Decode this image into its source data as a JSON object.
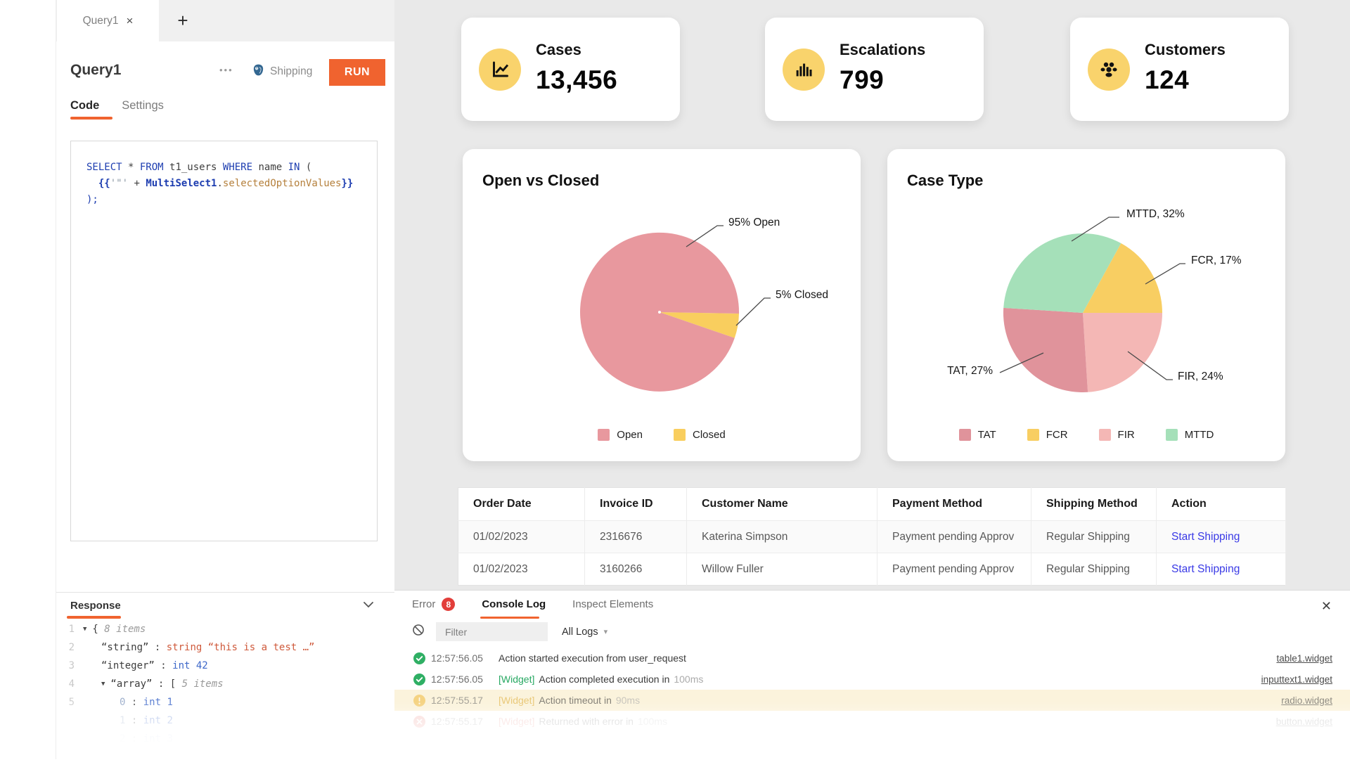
{
  "colors": {
    "accent": "#F0632F",
    "icon_circle": "#F9D36C",
    "link": "#3A3AE6",
    "success": "#2FAF64",
    "warning": "#F2C14E",
    "error": "#E25449",
    "badge": "#E23E3A",
    "dashboard_bg": "#E9E9E9"
  },
  "query_panel": {
    "tab_title": "Query1",
    "tab_close_icon": "×",
    "add_tab_icon": "+",
    "header": {
      "title": "Query1",
      "more_icon": "•••",
      "resource_label": "Shipping",
      "resource_icon": "postgresql",
      "run_label": "RUN"
    },
    "tabs": [
      {
        "label": "Code",
        "active": true
      },
      {
        "label": "Settings",
        "active": false
      }
    ],
    "code_lines": [
      [
        {
          "t": "SELECT",
          "c": "kw"
        },
        {
          "t": " * ",
          "c": "pl"
        },
        {
          "t": "FROM",
          "c": "kw"
        },
        {
          "t": " t1_users ",
          "c": "pl"
        },
        {
          "t": "WHERE",
          "c": "kw"
        },
        {
          "t": " name ",
          "c": "pl"
        },
        {
          "t": "IN",
          "c": "kw"
        },
        {
          "t": " (",
          "c": "pl"
        }
      ],
      [
        {
          "t": "  {{",
          "c": "brace"
        },
        {
          "t": "'\"'",
          "c": "str"
        },
        {
          "t": " + ",
          "c": "pl"
        },
        {
          "t": "MultiSelect1",
          "c": "obj"
        },
        {
          "t": ".",
          "c": "pl"
        },
        {
          "t": "selectedOptionValues",
          "c": "prop"
        },
        {
          "t": "}}",
          "c": "brace"
        }
      ],
      [
        {
          "t": ");",
          "c": "kw"
        }
      ]
    ],
    "response": {
      "label": "Response",
      "rows": [
        {
          "num": "1",
          "indent": 0,
          "caret": true,
          "fade": 1,
          "tokens": [
            {
              "t": "{ ",
              "c": "pl"
            },
            {
              "t": "8 items",
              "c": "meta"
            }
          ]
        },
        {
          "num": "2",
          "indent": 1,
          "caret": false,
          "fade": 1,
          "tokens": [
            {
              "t": "“string”",
              "c": "key"
            },
            {
              "t": " : ",
              "c": "pl"
            },
            {
              "t": "string ",
              "c": "red"
            },
            {
              "t": "“this is a test …”",
              "c": "red"
            }
          ]
        },
        {
          "num": "3",
          "indent": 1,
          "caret": false,
          "fade": 1,
          "tokens": [
            {
              "t": "“integer”",
              "c": "key"
            },
            {
              "t": " : ",
              "c": "pl"
            },
            {
              "t": "int 42",
              "c": "blue"
            }
          ]
        },
        {
          "num": "4",
          "indent": 1,
          "caret": true,
          "fade": 1,
          "tokens": [
            {
              "t": "“array”",
              "c": "key"
            },
            {
              "t": " : [ ",
              "c": "pl"
            },
            {
              "t": "5 items",
              "c": "meta"
            }
          ]
        },
        {
          "num": "5",
          "indent": 2,
          "caret": false,
          "fade": 1,
          "tokens": [
            {
              "t": "0",
              "c": "idx"
            },
            {
              "t": " : ",
              "c": "pl"
            },
            {
              "t": "int 1",
              "c": "blue"
            }
          ]
        },
        {
          "num": "",
          "indent": 2,
          "caret": false,
          "fade": 0.45,
          "tokens": [
            {
              "t": "1",
              "c": "idx"
            },
            {
              "t": " : ",
              "c": "pl"
            },
            {
              "t": "int 2",
              "c": "blue"
            }
          ]
        },
        {
          "num": "",
          "indent": 2,
          "caret": false,
          "fade": 0.15,
          "tokens": [
            {
              "t": "2",
              "c": "idx"
            },
            {
              "t": " : ",
              "c": "pl"
            },
            {
              "t": "int 3",
              "c": "blue"
            }
          ]
        }
      ]
    }
  },
  "dashboard": {
    "stats": [
      {
        "label": "Cases",
        "value": "13,456",
        "icon": "line-chart-icon"
      },
      {
        "label": "Escalations",
        "value": "799",
        "icon": "bar-chart-icon"
      },
      {
        "label": "Customers",
        "value": "124",
        "icon": "people-icon"
      }
    ],
    "table": {
      "headers": [
        "Order Date",
        "Invoice ID",
        "Customer Name",
        "Payment Method",
        "Shipping Method",
        "Action"
      ],
      "rows": [
        [
          "01/02/2023",
          "2316676",
          "Katerina Simpson",
          "Payment pending Approv",
          "Regular Shipping",
          "Start Shipping"
        ],
        [
          "01/02/2023",
          "3160266",
          "Willow Fuller",
          "Payment pending Approv",
          "Regular Shipping",
          "Start Shipping"
        ]
      ],
      "link_column": 5
    }
  },
  "chart_data": [
    {
      "type": "pie",
      "title": "Open vs Closed",
      "legend_position": "bottom",
      "slices": [
        {
          "label": "Open",
          "value": 95,
          "color": "#E8989E",
          "callout": "95% Open"
        },
        {
          "label": "Closed",
          "value": 5,
          "color": "#F9CE5E",
          "callout": "5% Closed"
        }
      ]
    },
    {
      "type": "pie",
      "title": "Case Type",
      "legend_position": "bottom",
      "slices": [
        {
          "label": "TAT",
          "value": 27,
          "color": "#E0939B",
          "callout": "TAT, 27%"
        },
        {
          "label": "FCR",
          "value": 17,
          "color": "#F8CE62",
          "callout": "FCR, 17%"
        },
        {
          "label": "FIR",
          "value": 24,
          "color": "#F4B7B5",
          "callout": "FIR, 24%"
        },
        {
          "label": "MTTD",
          "value": 32,
          "color": "#A5E0B9",
          "callout": "MTTD, 32%"
        }
      ]
    }
  ],
  "console": {
    "tabs": [
      {
        "label": "Error",
        "badge": "8",
        "active": false
      },
      {
        "label": "Console Log",
        "active": true
      },
      {
        "label": "Inspect Elements",
        "active": false
      }
    ],
    "close_icon": "✕",
    "filter_placeholder": "Filter",
    "logs_filter": "All Logs",
    "caret_icon": "▾",
    "logs": [
      {
        "status": "success",
        "time": "12:57:56.05",
        "tag": "",
        "message": "Action started execution from user_request",
        "duration": "",
        "link": "table1.widget",
        "fade": 1,
        "bg": ""
      },
      {
        "status": "success",
        "time": "12:57:56.05",
        "tag": "[Widget]",
        "message": "Action completed execution in",
        "duration": "100ms",
        "link": "inputtext1.widget",
        "fade": 1,
        "bg": ""
      },
      {
        "status": "warning",
        "time": "12:57:55.17",
        "tag": "[Widget]",
        "message": "Action timeout in",
        "duration": "90ms",
        "link": "radio.widget",
        "fade": 0.62,
        "bg": "#FBF3DC"
      },
      {
        "status": "error",
        "time": "12:57:55.17",
        "tag": "[Widget]",
        "message": "Returned with error in",
        "duration": "100ms",
        "link": "button.widget",
        "fade": 0.2,
        "bg": ""
      }
    ]
  }
}
